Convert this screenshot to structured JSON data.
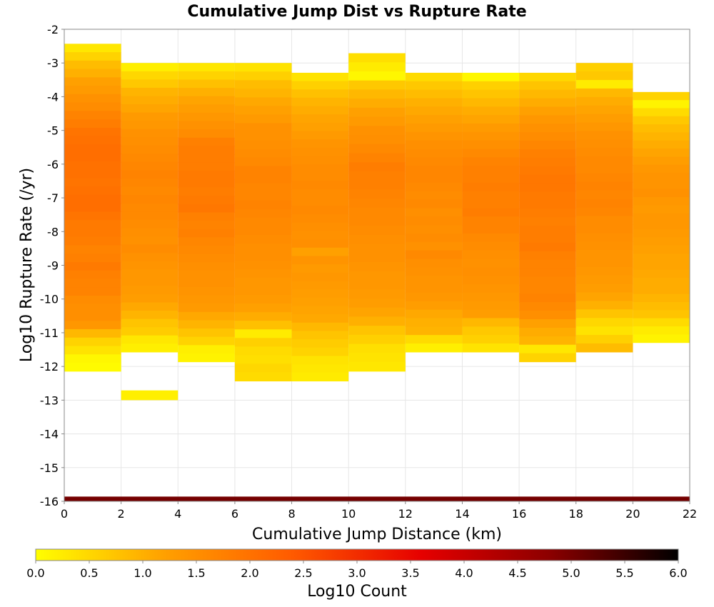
{
  "chart_data": {
    "type": "heatmap",
    "title": "Cumulative Jump Dist vs Rupture Rate",
    "xlabel": "Cumulative Jump Distance (km)",
    "ylabel": "Log10 Rupture Rate (/yr)",
    "xlim": [
      0,
      22
    ],
    "ylim": [
      -16,
      -2
    ],
    "x_ticks": [
      "0",
      "2",
      "4",
      "6",
      "8",
      "10",
      "12",
      "14",
      "16",
      "18",
      "20",
      "22"
    ],
    "y_ticks": [
      "-2",
      "-3",
      "-4",
      "-5",
      "-6",
      "-7",
      "-8",
      "-9",
      "-10",
      "-11",
      "-12",
      "-13",
      "-14",
      "-15",
      "-16"
    ],
    "grid": true,
    "bin_width_x": 2,
    "bin_height_y": 0.2857,
    "colorbar": {
      "label": "Log10 Count",
      "range": [
        0,
        6
      ],
      "ticks": [
        "0.0",
        "0.5",
        "1.0",
        "1.5",
        "2.0",
        "2.5",
        "3.0",
        "3.5",
        "4.0",
        "4.5",
        "5.0",
        "5.5",
        "6.0"
      ],
      "colors": [
        "#ffff00",
        "#ffa000",
        "#ff5a00",
        "#e60000",
        "#8c0000",
        "#000000"
      ]
    },
    "columns": [
      {
        "x_start": 0,
        "y_top": -2.43,
        "y_bottom": -12.14,
        "values": [
          0.3,
          0.55,
          0.85,
          1.0,
          1.2,
          1.3,
          1.45,
          1.55,
          1.7,
          1.8,
          1.95,
          2.0,
          2.05,
          2.05,
          2.0,
          2.0,
          1.95,
          2.0,
          2.05,
          2.05,
          1.95,
          1.85,
          1.85,
          1.8,
          1.7,
          1.75,
          1.85,
          1.75,
          1.7,
          1.7,
          1.55,
          1.5,
          1.5,
          1.35,
          0.9,
          0.55,
          0.35,
          0.1,
          0.05
        ]
      },
      {
        "x_start": 2,
        "y_top": -3.0,
        "y_bottom": -11.57,
        "values": [
          0.2,
          0.5,
          0.7,
          0.95,
          1.05,
          1.15,
          1.3,
          1.35,
          1.45,
          1.5,
          1.55,
          1.6,
          1.65,
          1.7,
          1.65,
          1.6,
          1.65,
          1.6,
          1.6,
          1.55,
          1.5,
          1.45,
          1.55,
          1.45,
          1.4,
          1.35,
          1.35,
          1.3,
          1.25,
          1.1,
          0.95,
          0.75,
          0.65,
          0.3,
          0.2
        ]
      },
      {
        "x_start": 4,
        "y_top": -3.0,
        "y_bottom": -11.86,
        "values": [
          0.3,
          0.55,
          0.8,
          1.0,
          1.15,
          1.25,
          1.35,
          1.45,
          1.55,
          1.75,
          1.8,
          1.8,
          1.8,
          1.85,
          1.85,
          1.8,
          1.85,
          1.9,
          1.75,
          1.7,
          1.75,
          1.65,
          1.6,
          1.55,
          1.5,
          1.45,
          1.45,
          1.4,
          1.35,
          1.3,
          1.1,
          0.95,
          0.75,
          0.55,
          0.2,
          0.15
        ]
      },
      {
        "x_start": 6,
        "y_top": -3.0,
        "y_bottom": -12.43,
        "values": [
          0.35,
          0.6,
          0.85,
          0.95,
          1.1,
          1.2,
          1.3,
          1.45,
          1.45,
          1.5,
          1.55,
          1.6,
          1.7,
          1.7,
          1.65,
          1.65,
          1.7,
          1.65,
          1.6,
          1.6,
          1.55,
          1.5,
          1.5,
          1.45,
          1.4,
          1.35,
          1.35,
          1.3,
          1.2,
          1.05,
          0.8,
          0.25,
          0.6,
          0.45,
          0.4,
          0.5,
          0.45
        ]
      },
      {
        "x_start": 8,
        "y_top": -3.29,
        "y_bottom": -12.43,
        "values": [
          0.35,
          0.6,
          0.8,
          0.95,
          1.05,
          1.15,
          1.2,
          1.3,
          1.4,
          1.45,
          1.5,
          1.55,
          1.55,
          1.6,
          1.55,
          1.55,
          1.6,
          1.55,
          1.5,
          1.45,
          1.5,
          1.2,
          1.4,
          1.3,
          1.35,
          1.3,
          1.25,
          1.2,
          1.15,
          1.1,
          0.9,
          0.75,
          0.65,
          0.55,
          0.35,
          0.3,
          0.25
        ]
      },
      {
        "x_start": 10,
        "y_top": -2.71,
        "y_bottom": -12.14,
        "values": [
          0.4,
          0.25,
          0.1,
          0.7,
          0.9,
          1.05,
          1.2,
          1.3,
          1.45,
          1.5,
          1.6,
          1.7,
          1.8,
          1.75,
          1.75,
          1.7,
          1.65,
          1.6,
          1.6,
          1.55,
          1.5,
          1.45,
          1.45,
          1.4,
          1.35,
          1.35,
          1.3,
          1.25,
          1.15,
          1.0,
          0.75,
          0.6,
          0.4,
          0.35,
          0.2
        ]
      },
      {
        "x_start": 12,
        "y_top": -3.29,
        "y_bottom": -11.57,
        "values": [
          0.45,
          0.7,
          0.85,
          1.0,
          1.1,
          1.2,
          1.3,
          1.4,
          1.5,
          1.55,
          1.6,
          1.65,
          1.65,
          1.6,
          1.55,
          1.6,
          1.5,
          1.55,
          1.5,
          1.55,
          1.45,
          1.6,
          1.5,
          1.45,
          1.4,
          1.4,
          1.35,
          1.25,
          1.1,
          1.0,
          0.95,
          0.45,
          0.2
        ]
      },
      {
        "x_start": 14,
        "y_top": -3.29,
        "y_bottom": -11.57,
        "values": [
          0.1,
          0.6,
          0.75,
          0.9,
          1.05,
          1.15,
          1.3,
          1.4,
          1.5,
          1.6,
          1.7,
          1.75,
          1.75,
          1.8,
          1.75,
          1.75,
          1.8,
          1.7,
          1.7,
          1.6,
          1.55,
          1.5,
          1.45,
          1.5,
          1.45,
          1.4,
          1.35,
          1.3,
          1.25,
          0.9,
          0.7,
          0.6,
          0.35
        ]
      },
      {
        "x_start": 16,
        "y_top": -3.29,
        "y_bottom": -11.86,
        "values": [
          0.5,
          0.75,
          0.9,
          1.05,
          1.2,
          1.35,
          1.45,
          1.55,
          1.65,
          1.75,
          1.8,
          1.85,
          1.9,
          1.9,
          1.85,
          1.85,
          1.8,
          1.75,
          1.8,
          1.8,
          1.85,
          1.75,
          1.7,
          1.7,
          1.65,
          1.65,
          1.7,
          1.6,
          1.5,
          1.2,
          1.05,
          0.95,
          0.3,
          0.55
        ]
      },
      {
        "x_start": 18,
        "y_top": -3.0,
        "y_bottom": -11.57,
        "values": [
          0.6,
          0.7,
          0.25,
          0.9,
          1.05,
          1.15,
          1.25,
          1.35,
          1.45,
          1.5,
          1.55,
          1.6,
          1.6,
          1.65,
          1.7,
          1.65,
          1.7,
          1.65,
          1.55,
          1.55,
          1.5,
          1.45,
          1.4,
          1.4,
          1.35,
          1.3,
          1.25,
          1.15,
          1.0,
          0.75,
          0.5,
          0.35,
          0.6,
          0.85
        ]
      },
      {
        "x_start": 20,
        "y_top": -3.86,
        "y_bottom": -11.29,
        "values": [
          0.55,
          0.15,
          0.45,
          0.7,
          0.85,
          0.95,
          1.05,
          1.15,
          1.25,
          1.35,
          1.4,
          1.4,
          1.45,
          1.35,
          1.3,
          1.35,
          1.35,
          1.3,
          1.25,
          1.2,
          1.15,
          1.15,
          1.1,
          1.05,
          1.05,
          0.95,
          0.85,
          0.75,
          0.45,
          0.25,
          0.15
        ]
      }
    ],
    "isolated_cells": [
      {
        "x_start": 2,
        "y_top": -12.71,
        "y_bottom": -13.0,
        "value": 0.2
      },
      {
        "x_start": 10,
        "y_top": -11.86,
        "y_bottom": -12.14,
        "value": 0.3
      }
    ],
    "bottom_row": {
      "y_top": -15.86,
      "y_bottom": -16.0,
      "value": 5.0
    }
  }
}
